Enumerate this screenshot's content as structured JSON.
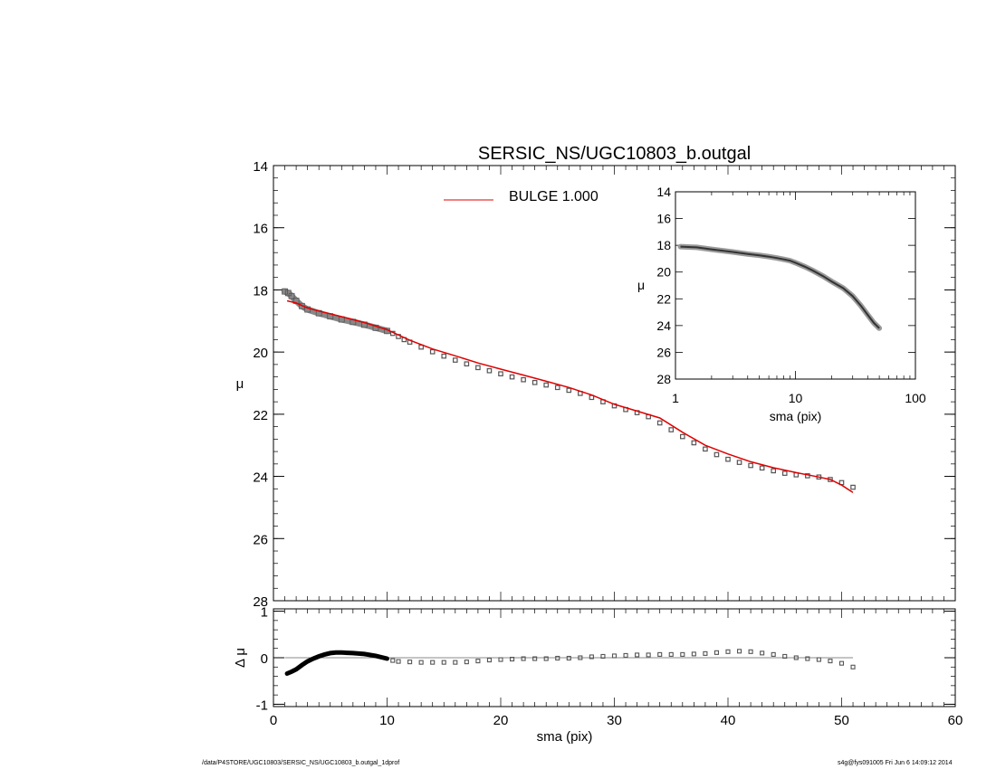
{
  "chart_data": [
    {
      "type": "scatter",
      "title": "SERSIC_NS/UGC10803_b.outgal",
      "xlabel": "",
      "ylabel": "μ",
      "xlim": [
        0,
        60
      ],
      "ylim": [
        28,
        14
      ],
      "y_inverted": true,
      "yticks": [
        14,
        16,
        18,
        20,
        22,
        24,
        26,
        28
      ],
      "grid": false,
      "legend": {
        "placement": "top-center",
        "entries": [
          {
            "label": "BULGE  1.000",
            "color": "#e00000"
          }
        ]
      },
      "series": [
        {
          "style": "gray thick profile (dense squares)",
          "color": "#888888",
          "points": [
            [
              1.0,
              18.05
            ],
            [
              1.3,
              18.1
            ],
            [
              1.6,
              18.2
            ],
            [
              2.0,
              18.35
            ],
            [
              2.5,
              18.52
            ],
            [
              3.0,
              18.63
            ],
            [
              4.0,
              18.75
            ],
            [
              5.0,
              18.85
            ],
            [
              6.0,
              18.95
            ],
            [
              7.0,
              19.03
            ],
            [
              8.0,
              19.12
            ],
            [
              9.0,
              19.22
            ],
            [
              10.0,
              19.32
            ]
          ]
        },
        {
          "style": "open squares",
          "color": "#555555",
          "points": [
            [
              10.5,
              19.4
            ],
            [
              11,
              19.5
            ],
            [
              11.5,
              19.6
            ],
            [
              12,
              19.68
            ],
            [
              13,
              19.84
            ],
            [
              14,
              19.99
            ],
            [
              15,
              20.13
            ],
            [
              16,
              20.26
            ],
            [
              17,
              20.38
            ],
            [
              18,
              20.5
            ],
            [
              19,
              20.6
            ],
            [
              20,
              20.7
            ],
            [
              21,
              20.8
            ],
            [
              22,
              20.89
            ],
            [
              23,
              20.98
            ],
            [
              24,
              21.06
            ],
            [
              25,
              21.14
            ],
            [
              26,
              21.23
            ],
            [
              27,
              21.33
            ],
            [
              28,
              21.46
            ],
            [
              29,
              21.6
            ],
            [
              30,
              21.73
            ],
            [
              31,
              21.85
            ],
            [
              32,
              21.95
            ],
            [
              33,
              22.08
            ],
            [
              34,
              22.28
            ],
            [
              35,
              22.5
            ],
            [
              36,
              22.72
            ],
            [
              37,
              22.92
            ],
            [
              38,
              23.12
            ],
            [
              39,
              23.3
            ],
            [
              40,
              23.45
            ],
            [
              41,
              23.55
            ],
            [
              42,
              23.65
            ],
            [
              43,
              23.73
            ],
            [
              44,
              23.82
            ],
            [
              45,
              23.9
            ],
            [
              46,
              23.95
            ],
            [
              47,
              23.98
            ],
            [
              48,
              24.02
            ],
            [
              49,
              24.1
            ],
            [
              50,
              24.2
            ],
            [
              51,
              24.35
            ]
          ]
        },
        {
          "name": "BULGE  1.000",
          "style": "line",
          "color": "#e00000",
          "points": [
            [
              1.2,
              18.35
            ],
            [
              2,
              18.42
            ],
            [
              3,
              18.58
            ],
            [
              4,
              18.68
            ],
            [
              6,
              18.86
            ],
            [
              8,
              19.05
            ],
            [
              10,
              19.28
            ],
            [
              12,
              19.62
            ],
            [
              14,
              19.9
            ],
            [
              16,
              20.12
            ],
            [
              18,
              20.35
            ],
            [
              20,
              20.55
            ],
            [
              22,
              20.74
            ],
            [
              24,
              20.94
            ],
            [
              26,
              21.14
            ],
            [
              28,
              21.38
            ],
            [
              30,
              21.68
            ],
            [
              32,
              21.9
            ],
            [
              34,
              22.12
            ],
            [
              36,
              22.58
            ],
            [
              38,
              23.0
            ],
            [
              40,
              23.28
            ],
            [
              42,
              23.53
            ],
            [
              44,
              23.72
            ],
            [
              46,
              23.88
            ],
            [
              48,
              24.02
            ],
            [
              49,
              24.1
            ],
            [
              50,
              24.28
            ],
            [
              51,
              24.52
            ]
          ]
        }
      ]
    },
    {
      "type": "line",
      "title": "",
      "xlabel": "sma (pix)",
      "ylabel": "μ",
      "x_scale": "log",
      "xlim": [
        1,
        100
      ],
      "xticks": [
        "1",
        "10",
        "100"
      ],
      "ylim": [
        28,
        14
      ],
      "y_inverted": true,
      "yticks": [
        14,
        16,
        18,
        20,
        22,
        24,
        26,
        28
      ],
      "series": [
        {
          "style": "thick gray line with error band",
          "color": "#555555",
          "points": [
            [
              1.1,
              18.1
            ],
            [
              1.5,
              18.15
            ],
            [
              2,
              18.3
            ],
            [
              3,
              18.5
            ],
            [
              4,
              18.65
            ],
            [
              5,
              18.75
            ],
            [
              6,
              18.85
            ],
            [
              7,
              18.95
            ],
            [
              8,
              19.05
            ],
            [
              9,
              19.15
            ],
            [
              10,
              19.3
            ],
            [
              12,
              19.6
            ],
            [
              14,
              19.9
            ],
            [
              17,
              20.3
            ],
            [
              20,
              20.7
            ],
            [
              25,
              21.2
            ],
            [
              30,
              21.8
            ],
            [
              35,
              22.5
            ],
            [
              40,
              23.2
            ],
            [
              45,
              23.8
            ],
            [
              50,
              24.2
            ]
          ]
        }
      ]
    },
    {
      "type": "scatter",
      "title": "",
      "xlabel": "sma (pix)",
      "ylabel": "Δ μ",
      "xlim": [
        0,
        60
      ],
      "xticks": [
        0,
        10,
        20,
        30,
        40,
        50,
        60
      ],
      "ylim": [
        -1,
        1
      ],
      "yticks": [
        -1,
        0,
        1
      ],
      "reference_line": {
        "y": 0,
        "x_range": [
          1,
          51
        ],
        "color": "#888888"
      },
      "series": [
        {
          "style": "black thick profile",
          "color": "#000000",
          "points": [
            [
              1.2,
              -0.34
            ],
            [
              1.6,
              -0.3
            ],
            [
              2,
              -0.25
            ],
            [
              2.5,
              -0.16
            ],
            [
              3,
              -0.08
            ],
            [
              3.5,
              -0.02
            ],
            [
              4,
              0.03
            ],
            [
              4.5,
              0.07
            ],
            [
              5,
              0.1
            ],
            [
              5.5,
              0.11
            ],
            [
              6,
              0.11
            ],
            [
              7,
              0.1
            ],
            [
              8,
              0.08
            ],
            [
              9,
              0.04
            ],
            [
              10,
              -0.02
            ]
          ]
        },
        {
          "style": "open squares",
          "color": "#555555",
          "points": [
            [
              10.5,
              -0.06
            ],
            [
              11,
              -0.08
            ],
            [
              12,
              -0.09
            ],
            [
              13,
              -0.1
            ],
            [
              14,
              -0.1
            ],
            [
              15,
              -0.1
            ],
            [
              16,
              -0.1
            ],
            [
              17,
              -0.09
            ],
            [
              18,
              -0.07
            ],
            [
              19,
              -0.05
            ],
            [
              20,
              -0.04
            ],
            [
              21,
              -0.03
            ],
            [
              22,
              -0.02
            ],
            [
              23,
              -0.02
            ],
            [
              24,
              -0.02
            ],
            [
              25,
              -0.01
            ],
            [
              26,
              -0.01
            ],
            [
              27,
              0.0
            ],
            [
              28,
              0.02
            ],
            [
              29,
              0.03
            ],
            [
              30,
              0.04
            ],
            [
              31,
              0.05
            ],
            [
              32,
              0.06
            ],
            [
              33,
              0.06
            ],
            [
              34,
              0.07
            ],
            [
              35,
              0.07
            ],
            [
              36,
              0.07
            ],
            [
              37,
              0.08
            ],
            [
              38,
              0.09
            ],
            [
              39,
              0.11
            ],
            [
              40,
              0.13
            ],
            [
              41,
              0.14
            ],
            [
              42,
              0.13
            ],
            [
              43,
              0.1
            ],
            [
              44,
              0.07
            ],
            [
              45,
              0.03
            ],
            [
              46,
              0.0
            ],
            [
              47,
              -0.02
            ],
            [
              48,
              -0.04
            ],
            [
              49,
              -0.07
            ],
            [
              50,
              -0.12
            ],
            [
              51,
              -0.2
            ]
          ]
        }
      ]
    }
  ],
  "footer": {
    "left": "/data/P4STORE/UGC10803/SERSIC_NS/UGC10803_b.outgal_1dprof",
    "right": "s4g@fys091005  Fri Jun  6 14:09:12 2014"
  }
}
